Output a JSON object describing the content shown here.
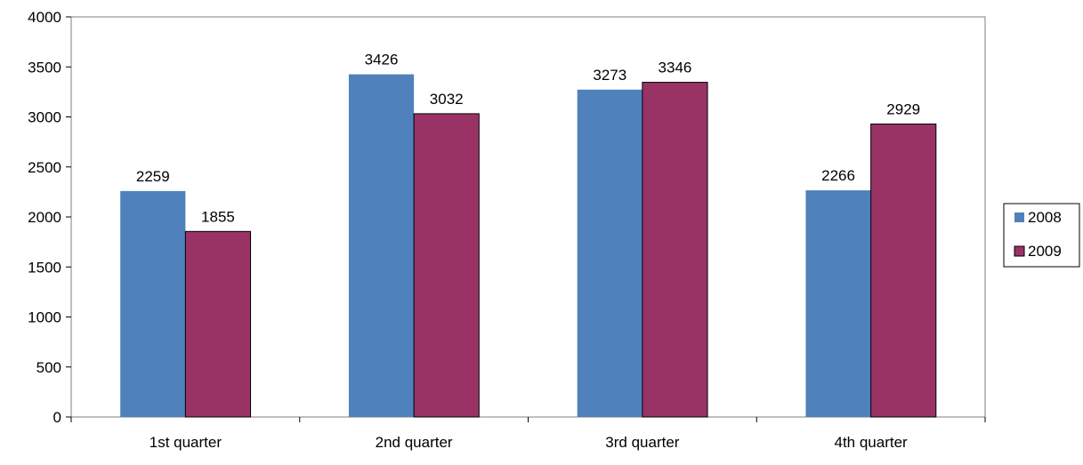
{
  "chart_data": {
    "type": "bar",
    "categories": [
      "1st quarter",
      "2nd quarter",
      "3rd quarter",
      "4th quarter"
    ],
    "series": [
      {
        "name": "2008",
        "values": [
          2259,
          3426,
          3273,
          2266
        ],
        "color": "#4F81BD"
      },
      {
        "name": "2009",
        "values": [
          1855,
          3032,
          3346,
          2929
        ],
        "color": "#993366"
      }
    ],
    "title": "",
    "xlabel": "",
    "ylabel": "",
    "ylim": [
      0,
      4000
    ],
    "yticks": [
      0,
      500,
      1000,
      1500,
      2000,
      2500,
      3000,
      3500,
      4000
    ],
    "grid": false,
    "legend_position": "right",
    "data_labels": true
  }
}
